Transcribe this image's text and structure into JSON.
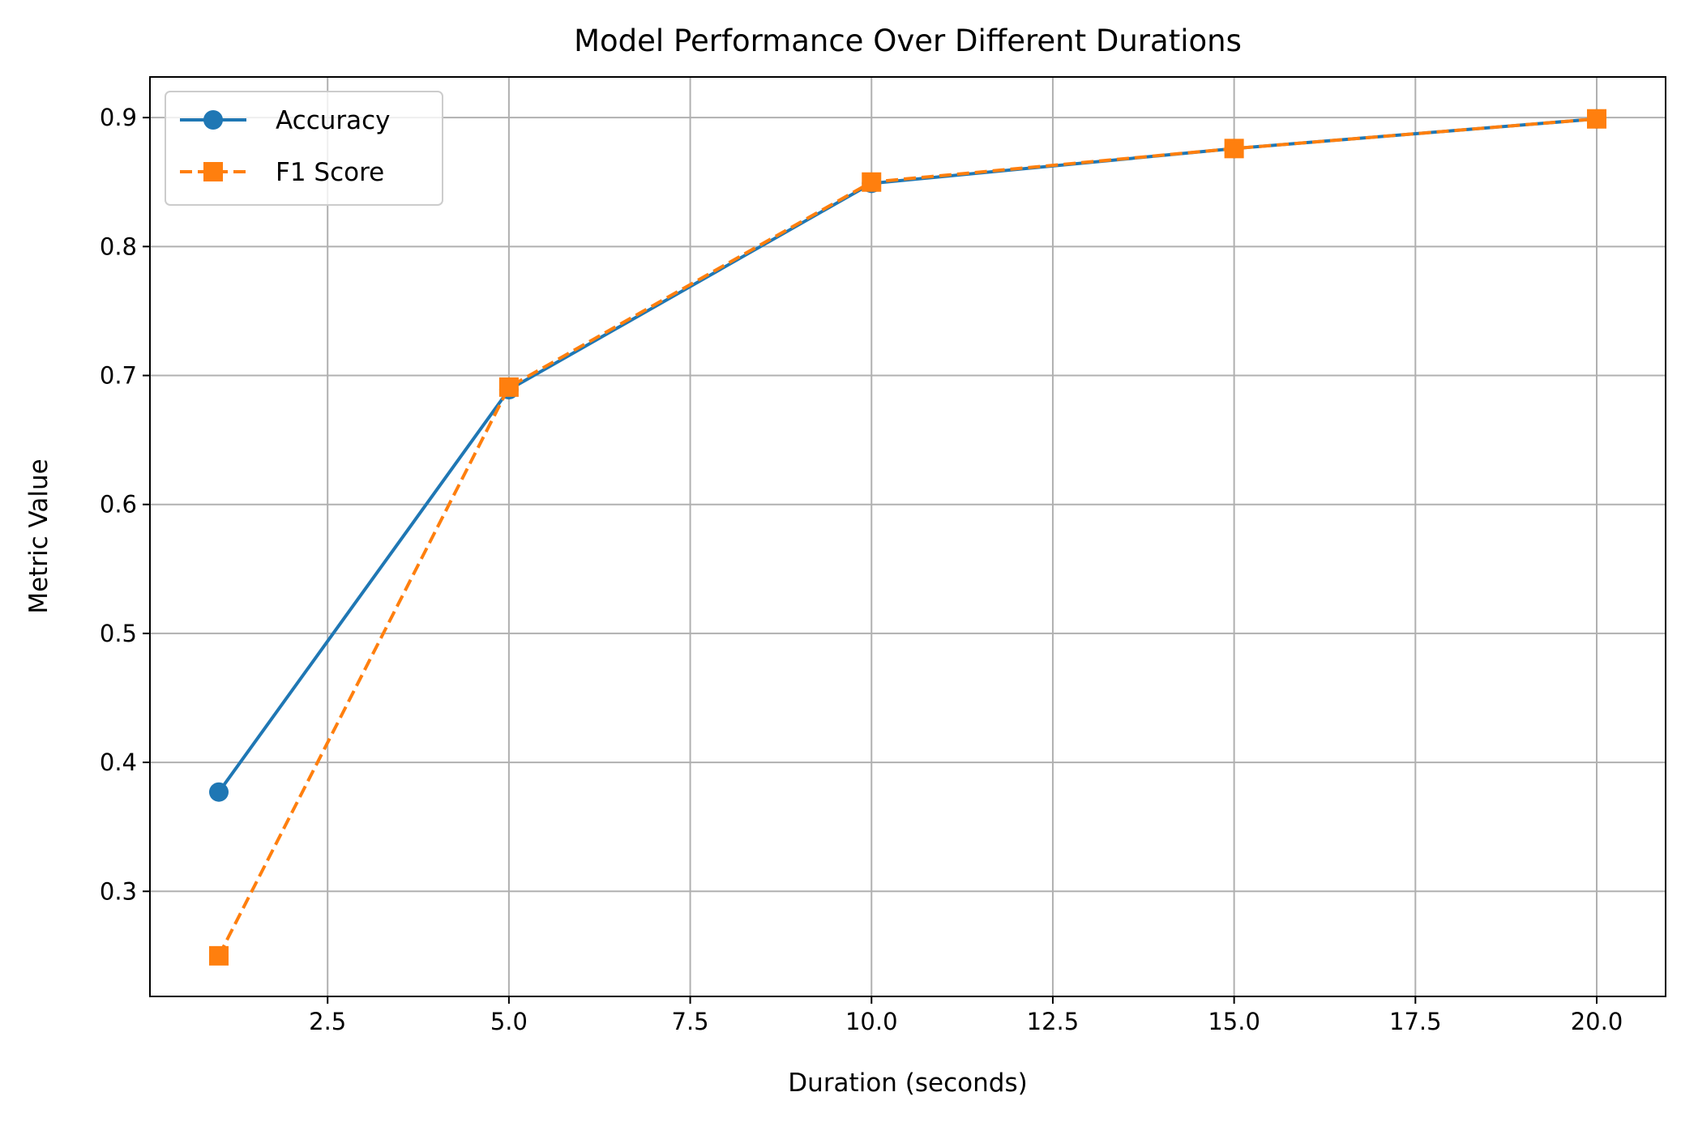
{
  "chart_data": {
    "type": "line",
    "title": "Model Performance Over Different Durations",
    "xlabel": "Duration (seconds)",
    "ylabel": "Metric Value",
    "xlim": [
      0.05,
      20.95
    ],
    "ylim": [
      0.2185,
      0.9315
    ],
    "xticks": [
      2.5,
      5.0,
      7.5,
      10.0,
      12.5,
      15.0,
      17.5,
      20.0
    ],
    "xtick_labels": [
      "2.5",
      "5.0",
      "7.5",
      "10.0",
      "12.5",
      "15.0",
      "17.5",
      "20.0"
    ],
    "yticks": [
      0.3,
      0.4,
      0.5,
      0.6,
      0.7,
      0.8,
      0.9
    ],
    "ytick_labels": [
      "0.3",
      "0.4",
      "0.5",
      "0.6",
      "0.7",
      "0.8",
      "0.9"
    ],
    "grid": true,
    "legend_position": "top-left",
    "x": [
      1,
      5,
      10,
      15,
      20
    ],
    "series": [
      {
        "name": "Accuracy",
        "values": [
          0.377,
          0.689,
          0.849,
          0.876,
          0.899
        ],
        "color": "#1f77b4",
        "line_style": "solid",
        "marker": "circle"
      },
      {
        "name": "F1 Score",
        "values": [
          0.25,
          0.691,
          0.85,
          0.876,
          0.899
        ],
        "color": "#ff7f0e",
        "line_style": "dashed",
        "marker": "square"
      }
    ]
  }
}
